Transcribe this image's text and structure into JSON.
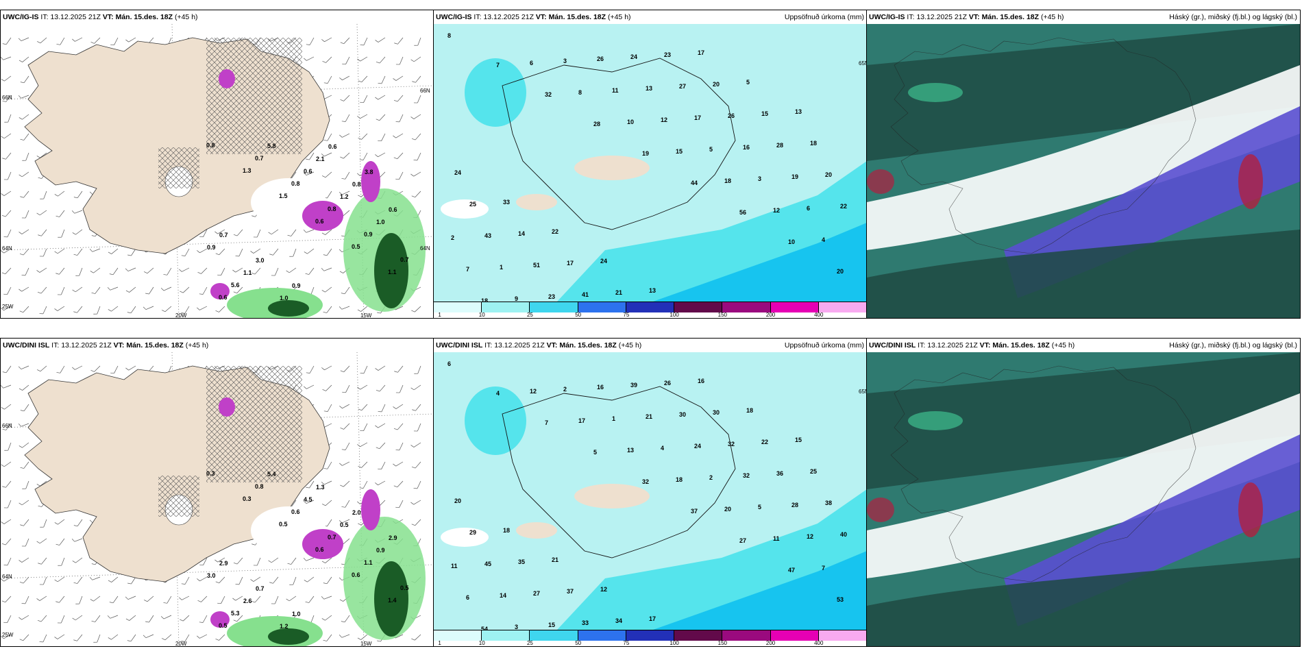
{
  "colors": {
    "land": "#eee0cf",
    "sea_light": "#b8f2f2",
    "sea_mid": "#55e4ec",
    "sea_deep": "#17c4ef",
    "precip_green": "#86e08e",
    "precip_dark": "#1a5c26",
    "magenta": "#c040c8",
    "cloud_teal": "#2f7a70",
    "cloud_dark": "#1e4a42",
    "cloud_blue": "#5a4fd0",
    "cloud_red": "#b02040"
  },
  "panels": [
    {
      "id": "p1",
      "model": "UWC/IG-IS",
      "it_label": "IT:",
      "it_value": "13.12.2025 21Z",
      "vt_label": "VT:",
      "vt_value": "Mán. 15.des. 18Z",
      "lead": "(+45 h)",
      "right_title": "",
      "kind": "wind",
      "coord_labels": [
        "66N",
        "64N",
        "25W",
        "20W",
        "15W",
        "66N",
        "64N"
      ],
      "values": [
        "0.8",
        "1.3",
        "1.5",
        "0.6",
        "0.5",
        "1.1",
        "0.6",
        "0.7",
        "0.8",
        "0.8",
        "0.9",
        "0.7",
        "5.6",
        "5.8",
        "0.6",
        "1.2",
        "1.0",
        "0.9",
        "1.1",
        "1.0",
        "2.1",
        "0.8",
        "0.6",
        "0.7",
        "3.0",
        "0.9",
        "0.6",
        "3.8"
      ]
    },
    {
      "id": "p2",
      "model": "UWC/IG-IS",
      "it_label": "IT:",
      "it_value": "13.12.2025 21Z",
      "vt_label": "VT:",
      "vt_value": "Mán. 15.des. 18Z",
      "lead": "(+45 h)",
      "right_title": "Uppsöfnuð úrkoma (mm)",
      "kind": "precip",
      "coord_labels": [
        "65N"
      ],
      "values": [
        "8",
        "7",
        "32",
        "28",
        "19",
        "44",
        "56",
        "10",
        "20",
        "18",
        "6",
        "8",
        "10",
        "15",
        "18",
        "12",
        "4",
        "7",
        "9",
        "3",
        "11",
        "12",
        "5",
        "3",
        "6",
        "2",
        "1",
        "23",
        "26",
        "13",
        "17",
        "16",
        "19",
        "22",
        "43",
        "51",
        "41",
        "24",
        "27",
        "26",
        "28",
        "20",
        "25",
        "14",
        "17",
        "21",
        "23",
        "20",
        "15",
        "18",
        "24",
        "33",
        "22",
        "24",
        "13",
        "17",
        "5",
        "13"
      ],
      "colorbar_ticks": [
        "1",
        "10",
        "25",
        "50",
        "75",
        "100",
        "150",
        "200",
        "400"
      ]
    },
    {
      "id": "p3",
      "model": "UWC/IG-IS",
      "it_label": "IT:",
      "it_value": "13.12.2025 21Z",
      "vt_label": "VT:",
      "vt_value": "Mán. 15.des. 18Z",
      "lead": "(+45 h)",
      "right_title": "Háský (gr.), miðský (fj.bl.) og lágský (bl.)",
      "kind": "cloud",
      "coord_labels": [],
      "values": []
    },
    {
      "id": "p4",
      "model": "UWC/DINI ISL",
      "it_label": "IT:",
      "it_value": "13.12.2025 21Z",
      "vt_label": "VT:",
      "vt_value": "Mán. 15.des. 18Z",
      "lead": "(+45 h)",
      "right_title": "",
      "kind": "wind",
      "coord_labels": [
        "66N",
        "64N",
        "25W",
        "20W",
        "15W"
      ],
      "values": [
        "0.3",
        "0.3",
        "0.5",
        "0.6",
        "0.6",
        "1.4",
        "0.5",
        "0.8",
        "0.6",
        "0.7",
        "1.1",
        "0.5",
        "5.3",
        "5.4",
        "4.5",
        "0.5",
        "0.9",
        "3.0",
        "2.6",
        "1.2",
        "1.3",
        "2.0",
        "2.9",
        "2.9",
        "0.7",
        "1.0"
      ]
    },
    {
      "id": "p5",
      "model": "UWC/DINI ISL",
      "it_label": "IT:",
      "it_value": "13.12.2025 21Z",
      "vt_label": "VT:",
      "vt_value": "Mán. 15.des. 18Z",
      "lead": "(+45 h)",
      "right_title": "Uppsöfnuð úrkoma (mm)",
      "kind": "precip",
      "coord_labels": [
        "65N"
      ],
      "values": [
        "6",
        "4",
        "7",
        "5",
        "32",
        "37",
        "27",
        "47",
        "53",
        "54",
        "12",
        "17",
        "13",
        "18",
        "20",
        "11",
        "7",
        "6",
        "3",
        "2",
        "1",
        "4",
        "2",
        "5",
        "12",
        "11",
        "14",
        "15",
        "16",
        "21",
        "24",
        "32",
        "28",
        "40",
        "45",
        "27",
        "33",
        "39",
        "30",
        "32",
        "36",
        "38",
        "29",
        "35",
        "37",
        "34",
        "26",
        "30",
        "22",
        "25",
        "20",
        "18",
        "21",
        "12",
        "17",
        "16",
        "18",
        "15"
      ],
      "colorbar_ticks": [
        "1",
        "10",
        "25",
        "50",
        "75",
        "100",
        "150",
        "200",
        "400"
      ]
    },
    {
      "id": "p6",
      "model": "UWC/DINI ISL",
      "it_label": "IT:",
      "it_value": "13.12.2025 21Z",
      "vt_label": "VT:",
      "vt_value": "Mán. 15.des. 18Z",
      "lead": "(+45 h)",
      "right_title": "Háský (gr.), miðský (fj.bl.) og lágský (bl.)",
      "kind": "cloud",
      "coord_labels": [],
      "values": []
    }
  ],
  "colorbar_colors": [
    "#ddfcfc",
    "#9ef2f2",
    "#3fd6ee",
    "#2d72ee",
    "#2230b8",
    "#620a4a",
    "#9a0a7e",
    "#e600b4",
    "#f8aaf0"
  ]
}
